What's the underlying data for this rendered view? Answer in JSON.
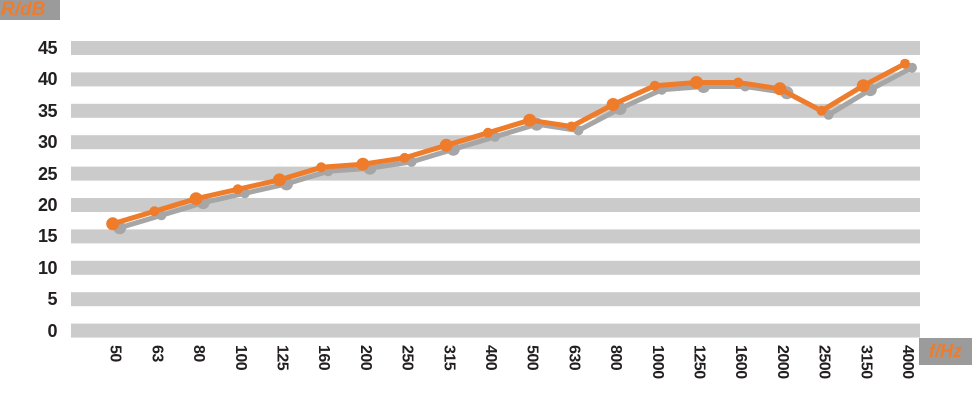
{
  "chart_data": {
    "type": "line",
    "title": "",
    "ylabel": "R/dB",
    "xlabel": "f/Hz",
    "x_scale": "third-octave-bands",
    "categories": [
      "50",
      "63",
      "80",
      "100",
      "125",
      "160",
      "200",
      "250",
      "315",
      "400",
      "500",
      "630",
      "800",
      "1000",
      "1250",
      "1600",
      "2000",
      "2500",
      "3150",
      "4000"
    ],
    "series": [
      {
        "name": "R",
        "values": [
          17,
          19,
          21,
          22.5,
          24,
          26,
          26.5,
          27.5,
          29.5,
          31.5,
          33.5,
          32.5,
          36,
          39,
          39.5,
          39.5,
          38.5,
          35,
          39,
          42.5
        ]
      }
    ],
    "y_ticks": [
      "45",
      "40",
      "35",
      "30",
      "25",
      "20",
      "15",
      "10",
      "5",
      "0"
    ],
    "ylim": [
      0,
      45
    ],
    "grid": "horizontal-gray-bands",
    "legend": "none"
  },
  "colors": {
    "line": "#ee7c2b",
    "line_shadow": "#a6a6a6",
    "grid_band": "#cbcbcb",
    "tick_text": "#231f20",
    "unit_chip_bg": "#9b9b9b",
    "background": "#ffffff"
  }
}
